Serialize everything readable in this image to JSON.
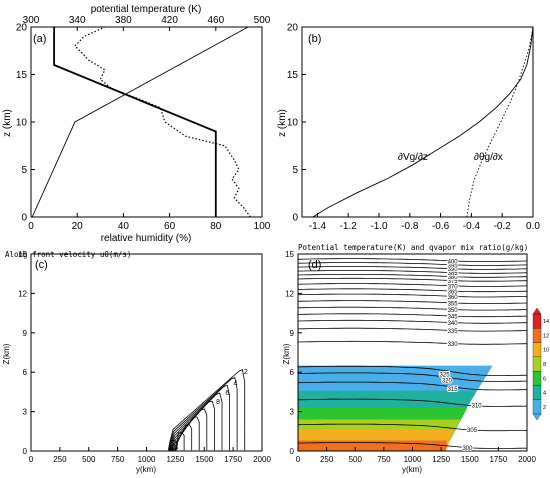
{
  "chart_data": [
    {
      "panel": "(a)",
      "type": "line",
      "top_axis_title": "potential temperature (K)",
      "top_ticks": [
        "300",
        "340",
        "380",
        "420",
        "460",
        "500"
      ],
      "top_xlim": [
        300,
        500
      ],
      "xlabel": "relative humidity (%)",
      "x_ticks": [
        "0",
        "20",
        "40",
        "60",
        "80",
        "100"
      ],
      "xlim": [
        0,
        100
      ],
      "ylabel": "z (km)",
      "y_ticks": [
        "0",
        "5",
        "10",
        "15",
        "20"
      ],
      "ylim": [
        0,
        20
      ],
      "series": [
        {
          "style": "thick",
          "axis": "bottom",
          "x": [
            80,
            80,
            10,
            10
          ],
          "y": [
            0,
            9,
            16,
            20
          ]
        },
        {
          "style": "thin",
          "axis": "top",
          "x": [
            301,
            338,
            488
          ],
          "y": [
            0,
            10,
            20
          ]
        },
        {
          "style": "dotted",
          "axis": "bottom",
          "x": [
            95,
            92,
            88,
            90,
            87,
            90,
            88,
            84,
            67,
            58,
            56,
            46,
            35,
            30,
            32,
            25,
            22,
            19,
            23,
            32
          ],
          "y": [
            0,
            1,
            2,
            3,
            4,
            5,
            6,
            7.5,
            8.5,
            10,
            11.5,
            12.5,
            13.5,
            14.5,
            15.5,
            16.5,
            17.3,
            18,
            19,
            20
          ]
        }
      ]
    },
    {
      "panel": "(b)",
      "type": "line",
      "x_ticks": [
        "-1.4",
        "-1.2",
        "-1.0",
        "-0.8",
        "-0.6",
        "-0.4",
        "-0.2",
        "0.0"
      ],
      "xlim": [
        -1.5,
        0
      ],
      "y_ticks": [
        "0",
        "5",
        "10",
        "15",
        "20"
      ],
      "ylim": [
        0,
        20
      ],
      "ylabel": "z (km)",
      "series": [
        {
          "name": "∂Vg/∂z",
          "style": "solid",
          "x": [
            -1.43,
            -1.33,
            -1.15,
            -0.95,
            -0.78,
            -0.63,
            -0.48,
            -0.35,
            -0.24,
            -0.15,
            -0.08,
            -0.04,
            -0.015,
            0
          ],
          "y": [
            0,
            1,
            2.5,
            4,
            5.5,
            7,
            8.5,
            10,
            11.5,
            13,
            14.5,
            16,
            18,
            20
          ]
        },
        {
          "name": "∂θg/∂x",
          "style": "dotted",
          "x": [
            -0.43,
            -0.41,
            -0.38,
            -0.33,
            -0.27,
            -0.21,
            -0.15,
            -0.1,
            -0.06,
            -0.03,
            -0.01,
            0
          ],
          "y": [
            0,
            2,
            4,
            6,
            8,
            10,
            12,
            14,
            16,
            17.5,
            19,
            20
          ]
        }
      ]
    },
    {
      "panel": "(c)",
      "type": "contour",
      "title": "Along front velocity u0(m/s)",
      "xlabel": "y(km)",
      "ylabel": "Z(km)",
      "x_ticks": [
        "0",
        "250",
        "500",
        "750",
        "1000",
        "1250",
        "1500",
        "1750",
        "2000"
      ],
      "xlim": [
        0,
        2000
      ],
      "y_ticks": [
        "0",
        "3",
        "6",
        "9",
        "12",
        "15"
      ],
      "ylim": [
        0,
        15
      ],
      "contour_levels": [
        2,
        4,
        6,
        8,
        10,
        12,
        14,
        16,
        18,
        20
      ],
      "labeled_levels": [
        "2",
        "4",
        "6",
        "8"
      ]
    },
    {
      "panel": "(d)",
      "type": "contour",
      "title": "Potential temperature(K) and qvapor mix ratio(g/kg)",
      "xlabel": "y(km)",
      "ylabel": "Z(km)",
      "x_ticks": [
        "0",
        "250",
        "500",
        "750",
        "1000",
        "1250",
        "1500",
        "1750",
        "2000"
      ],
      "xlim": [
        0,
        2000
      ],
      "y_ticks": [
        "0",
        "3",
        "6",
        "9",
        "12",
        "15"
      ],
      "ylim": [
        0,
        15
      ],
      "isentrope_labels": [
        "300",
        "305",
        "310",
        "315",
        "320",
        "325",
        "330",
        "335",
        "340",
        "345",
        "350",
        "355",
        "360",
        "365",
        "370",
        "375",
        "380",
        "385",
        "390",
        "395",
        "400"
      ],
      "colorbar_ticks": [
        "2",
        "4",
        "6",
        "8",
        "10",
        "12",
        "14"
      ],
      "colors": [
        "#4aaee8",
        "#1fb0a0",
        "#2cc430",
        "#a8d020",
        "#f0b020",
        "#f07020",
        "#e02020"
      ]
    }
  ]
}
